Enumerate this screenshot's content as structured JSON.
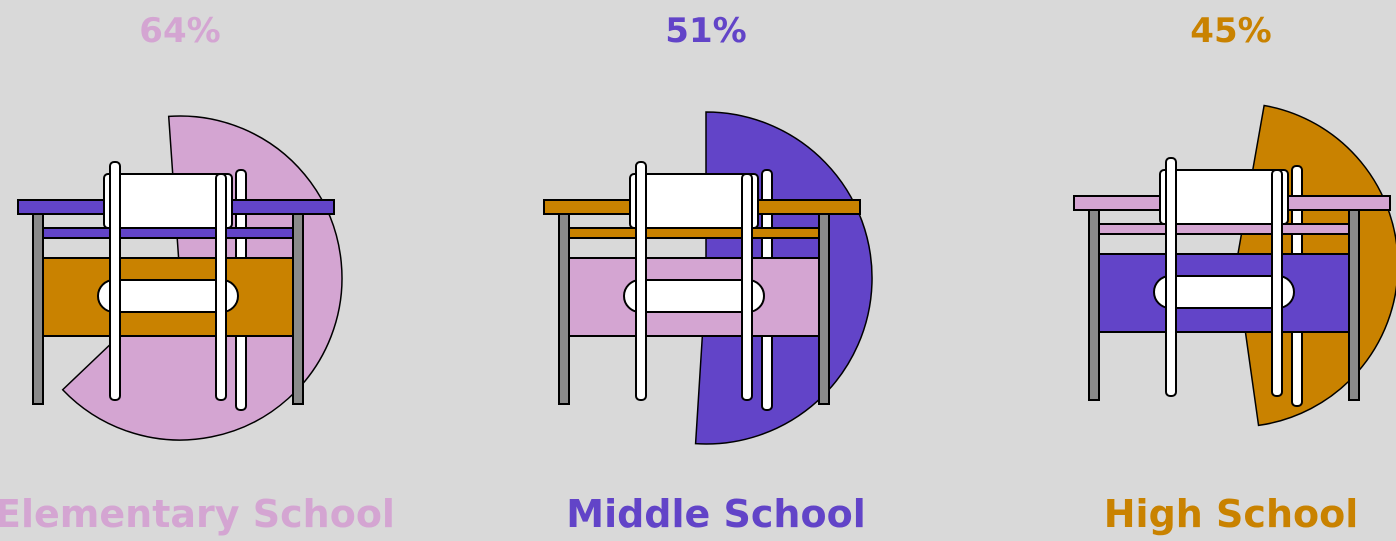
{
  "chart_data": {
    "type": "pie",
    "colors": {
      "pink": "#d4a5d2",
      "purple": "#6244c8",
      "orange": "#c98200"
    },
    "groups": [
      {
        "name": "Elementary School",
        "percent": 64,
        "percent_label": "64%",
        "slice_color": "#d4a5d2",
        "desk_color": "#6244c8",
        "drawer_color": "#c98200"
      },
      {
        "name": "Middle School",
        "percent": 51,
        "percent_label": "51%",
        "slice_color": "#6244c8",
        "desk_color": "#c98200",
        "drawer_color": "#d4a5d2"
      },
      {
        "name": "High School",
        "percent": 45,
        "percent_label": "45%",
        "slice_color": "#c98200",
        "desk_color": "#d4a5d2",
        "drawer_color": "#6244c8"
      }
    ]
  }
}
